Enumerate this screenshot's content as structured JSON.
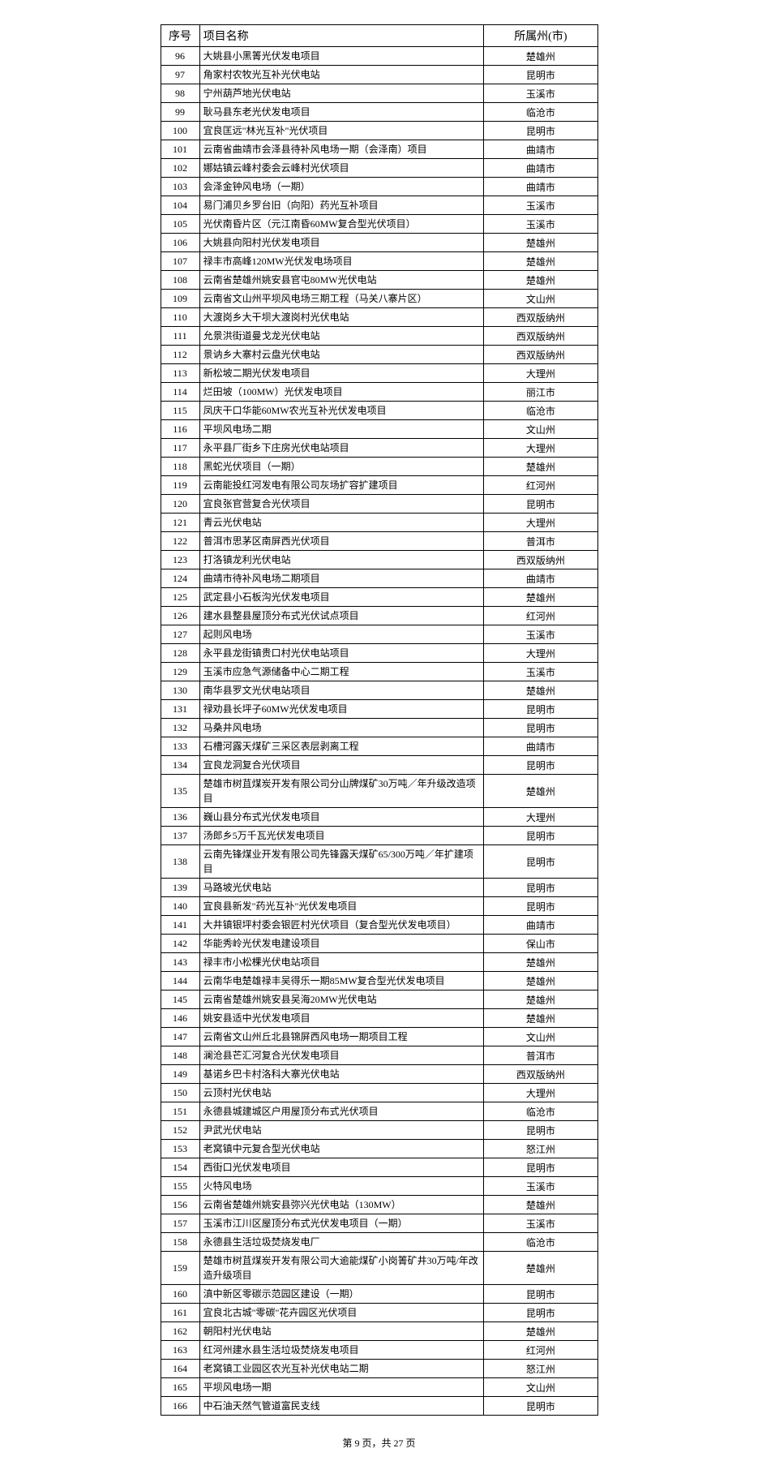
{
  "table": {
    "headers": {
      "seq": "序号",
      "name": "项目名称",
      "region": "所属州(市)"
    },
    "rows": [
      {
        "seq": "96",
        "name": "大姚县小黑箐光伏发电项目",
        "region": "楚雄州"
      },
      {
        "seq": "97",
        "name": "角家村农牧光互补光伏电站",
        "region": "昆明市"
      },
      {
        "seq": "98",
        "name": "宁州葫芦地光伏电站",
        "region": "玉溪市"
      },
      {
        "seq": "99",
        "name": "耿马县东老光伏发电项目",
        "region": "临沧市"
      },
      {
        "seq": "100",
        "name": "宜良匡远\"林光互补\"光伏项目",
        "region": "昆明市"
      },
      {
        "seq": "101",
        "name": "云南省曲靖市会泽县待补风电场一期（会泽南）项目",
        "region": "曲靖市"
      },
      {
        "seq": "102",
        "name": "娜姑镇云峰村委会云峰村光伏项目",
        "region": "曲靖市"
      },
      {
        "seq": "103",
        "name": "会泽金钟风电场（一期）",
        "region": "曲靖市"
      },
      {
        "seq": "104",
        "name": "易门浦贝乡罗台旧（向阳）药光互补项目",
        "region": "玉溪市"
      },
      {
        "seq": "105",
        "name": "光伏南昏片区（元江南昏60MW复合型光伏项目）",
        "region": "玉溪市"
      },
      {
        "seq": "106",
        "name": "大姚县向阳村光伏发电项目",
        "region": "楚雄州"
      },
      {
        "seq": "107",
        "name": "禄丰市高峰120MW光伏发电场项目",
        "region": "楚雄州"
      },
      {
        "seq": "108",
        "name": "云南省楚雄州姚安县官屯80MW光伏电站",
        "region": "楚雄州"
      },
      {
        "seq": "109",
        "name": "云南省文山州平坝风电场三期工程（马关八寨片区）",
        "region": "文山州"
      },
      {
        "seq": "110",
        "name": "大渡岗乡大干坝大渡岗村光伏电站",
        "region": "西双版纳州"
      },
      {
        "seq": "111",
        "name": "允景洪街道曼戈龙光伏电站",
        "region": "西双版纳州"
      },
      {
        "seq": "112",
        "name": "景讷乡大寨村云盘光伏电站",
        "region": "西双版纳州"
      },
      {
        "seq": "113",
        "name": "新松坡二期光伏发电项目",
        "region": "大理州"
      },
      {
        "seq": "114",
        "name": "烂田坡（100MW）光伏发电项目",
        "region": "丽江市"
      },
      {
        "seq": "115",
        "name": "凤庆干口华能60MW农光互补光伏发电项目",
        "region": "临沧市"
      },
      {
        "seq": "116",
        "name": "平坝风电场二期",
        "region": "文山州"
      },
      {
        "seq": "117",
        "name": "永平县厂街乡下庄房光伏电站项目",
        "region": "大理州"
      },
      {
        "seq": "118",
        "name": "黑蛇光伏项目（一期）",
        "region": "楚雄州"
      },
      {
        "seq": "119",
        "name": "云南能投红河发电有限公司灰场扩容扩建项目",
        "region": "红河州"
      },
      {
        "seq": "120",
        "name": "宜良张官营复合光伏项目",
        "region": "昆明市"
      },
      {
        "seq": "121",
        "name": "青云光伏电站",
        "region": "大理州"
      },
      {
        "seq": "122",
        "name": "普洱市思茅区南屏西光伏项目",
        "region": "普洱市"
      },
      {
        "seq": "123",
        "name": "打洛镇龙利光伏电站",
        "region": "西双版纳州"
      },
      {
        "seq": "124",
        "name": "曲靖市待补风电场二期项目",
        "region": "曲靖市"
      },
      {
        "seq": "125",
        "name": "武定县小石板沟光伏发电项目",
        "region": "楚雄州"
      },
      {
        "seq": "126",
        "name": "建水县整县屋顶分布式光伏试点项目",
        "region": "红河州"
      },
      {
        "seq": "127",
        "name": "起则风电场",
        "region": "玉溪市"
      },
      {
        "seq": "128",
        "name": "永平县龙街镇贵口村光伏电站项目",
        "region": "大理州"
      },
      {
        "seq": "129",
        "name": "玉溪市应急气源储备中心二期工程",
        "region": "玉溪市"
      },
      {
        "seq": "130",
        "name": "南华县罗文光伏电站项目",
        "region": "楚雄州"
      },
      {
        "seq": "131",
        "name": "禄劝县长坪子60MW光伏发电项目",
        "region": "昆明市"
      },
      {
        "seq": "132",
        "name": "马桑井风电场",
        "region": "昆明市"
      },
      {
        "seq": "133",
        "name": "石槽河露天煤矿三采区表层剥离工程",
        "region": "曲靖市"
      },
      {
        "seq": "134",
        "name": "宜良龙洞复合光伏项目",
        "region": "昆明市"
      },
      {
        "seq": "135",
        "name": "楚雄市树苴煤炭开发有限公司分山牌煤矿30万吨／年升级改造项目",
        "region": "楚雄州"
      },
      {
        "seq": "136",
        "name": "巍山县分布式光伏发电项目",
        "region": "大理州"
      },
      {
        "seq": "137",
        "name": "汤郎乡5万千瓦光伏发电项目",
        "region": "昆明市"
      },
      {
        "seq": "138",
        "name": "云南先锋煤业开发有限公司先锋露天煤矿65/300万吨／年扩建项目",
        "region": "昆明市"
      },
      {
        "seq": "139",
        "name": "马路坡光伏电站",
        "region": "昆明市"
      },
      {
        "seq": "140",
        "name": "宜良县新发\"药光互补\"光伏发电项目",
        "region": "昆明市"
      },
      {
        "seq": "141",
        "name": "大井镇银坪村委会银匠村光伏项目（复合型光伏发电项目）",
        "region": "曲靖市"
      },
      {
        "seq": "142",
        "name": "华能秀岭光伏发电建设项目",
        "region": "保山市"
      },
      {
        "seq": "143",
        "name": "禄丰市小松棵光伏电站项目",
        "region": "楚雄州"
      },
      {
        "seq": "144",
        "name": "云南华电楚雄禄丰吴得乐一期85MW复合型光伏发电项目",
        "region": "楚雄州"
      },
      {
        "seq": "145",
        "name": "云南省楚雄州姚安县吴海20MW光伏电站",
        "region": "楚雄州"
      },
      {
        "seq": "146",
        "name": "姚安县适中光伏发电项目",
        "region": "楚雄州"
      },
      {
        "seq": "147",
        "name": "云南省文山州丘北县锦屏西风电场一期项目工程",
        "region": "文山州"
      },
      {
        "seq": "148",
        "name": "澜沧县芒汇河复合光伏发电项目",
        "region": "普洱市"
      },
      {
        "seq": "149",
        "name": "基诺乡巴卡村洛科大寨光伏电站",
        "region": "西双版纳州"
      },
      {
        "seq": "150",
        "name": "云顶村光伏电站",
        "region": "大理州"
      },
      {
        "seq": "151",
        "name": "永德县城建城区户用屋顶分布式光伏项目",
        "region": "临沧市"
      },
      {
        "seq": "152",
        "name": "尹武光伏电站",
        "region": "昆明市"
      },
      {
        "seq": "153",
        "name": "老窝镇中元复合型光伏电站",
        "region": "怒江州"
      },
      {
        "seq": "154",
        "name": "西街口光伏发电项目",
        "region": "昆明市"
      },
      {
        "seq": "155",
        "name": "火特风电场",
        "region": "玉溪市"
      },
      {
        "seq": "156",
        "name": "云南省楚雄州姚安县弥兴光伏电站（130MW）",
        "region": "楚雄州"
      },
      {
        "seq": "157",
        "name": "玉溪市江川区屋顶分布式光伏发电项目（一期）",
        "region": "玉溪市"
      },
      {
        "seq": "158",
        "name": "永德县生活垃圾焚烧发电厂",
        "region": "临沧市"
      },
      {
        "seq": "159",
        "name": "楚雄市树苴煤炭开发有限公司大逾能煤矿小岗箐矿井30万吨/年改造升级项目",
        "region": "楚雄州"
      },
      {
        "seq": "160",
        "name": "滇中新区零碳示范园区建设（一期）",
        "region": "昆明市"
      },
      {
        "seq": "161",
        "name": "宜良北古城\"零碳\"花卉园区光伏项目",
        "region": "昆明市"
      },
      {
        "seq": "162",
        "name": "朝阳村光伏电站",
        "region": "楚雄州"
      },
      {
        "seq": "163",
        "name": "红河州建水县生活垃圾焚烧发电项目",
        "region": "红河州"
      },
      {
        "seq": "164",
        "name": "老窝镇工业园区农光互补光伏电站二期",
        "region": "怒江州"
      },
      {
        "seq": "165",
        "name": "平坝风电场一期",
        "region": "文山州"
      },
      {
        "seq": "166",
        "name": "中石油天然气管道富民支线",
        "region": "昆明市"
      }
    ]
  },
  "footer": {
    "text": "第 9 页，共 27 页"
  }
}
